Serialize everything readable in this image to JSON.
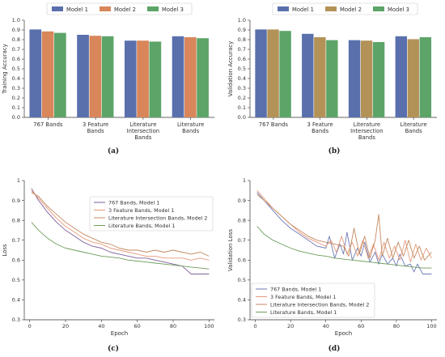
{
  "chart_data": [
    {
      "id": "a",
      "type": "bar",
      "panel_label": "(a)",
      "ylabel": "Training Accuracy",
      "ylim": [
        0,
        1.0
      ],
      "yticks": [
        "0.0",
        "0.1",
        "0.2",
        "0.3",
        "0.4",
        "0.5",
        "0.6",
        "0.7",
        "0.8",
        "0.9",
        "1.0"
      ],
      "categories": [
        [
          "767 Bands"
        ],
        [
          "3 Feature",
          "Bands"
        ],
        [
          "Literature",
          "Intersection",
          "Bands"
        ],
        [
          "Literature",
          "Bands"
        ]
      ],
      "series": [
        {
          "name": "Model 1",
          "color": "#5a70ad",
          "values": [
            0.905,
            0.85,
            0.79,
            0.835
          ]
        },
        {
          "name": "Model 2",
          "color": "#d8865a",
          "values": [
            0.885,
            0.84,
            0.79,
            0.825
          ]
        },
        {
          "name": "Model 3",
          "color": "#5ca468",
          "values": [
            0.87,
            0.835,
            0.78,
            0.815
          ]
        }
      ],
      "legend": "top"
    },
    {
      "id": "b",
      "type": "bar",
      "panel_label": "(b)",
      "ylabel": "Validation Accuracy",
      "ylim": [
        0,
        1.0
      ],
      "yticks": [
        "0.0",
        "0.1",
        "0.2",
        "0.3",
        "0.4",
        "0.5",
        "0.6",
        "0.7",
        "0.8",
        "0.9",
        "1.0"
      ],
      "categories": [
        [
          "767 Bands"
        ],
        [
          "3 Feature",
          "Bands"
        ],
        [
          "Literature",
          "Intersection",
          "Bands"
        ],
        [
          "Literature",
          "Bands"
        ]
      ],
      "series": [
        {
          "name": "Model 1",
          "color": "#5a70ad",
          "values": [
            0.905,
            0.86,
            0.795,
            0.835
          ]
        },
        {
          "name": "Model 2",
          "color": "#b39258",
          "values": [
            0.905,
            0.825,
            0.79,
            0.805
          ]
        },
        {
          "name": "Model 3",
          "color": "#5ca468",
          "values": [
            0.89,
            0.795,
            0.775,
            0.825
          ]
        }
      ],
      "legend": "top"
    },
    {
      "id": "c",
      "type": "line",
      "panel_label": "(c)",
      "xlabel": "Epoch",
      "ylabel": "Loss",
      "xlim": [
        -3,
        103
      ],
      "ylim": [
        0.3,
        1.0
      ],
      "xticks": [
        0,
        20,
        40,
        60,
        80,
        100
      ],
      "yticks": [
        0.3,
        0.4,
        0.5,
        0.6,
        0.7,
        0.8,
        0.9,
        1.0
      ],
      "legend": "top-right",
      "series": [
        {
          "name": "767 Bands, Model 1",
          "color": "#7f5f9a",
          "x": [
            1,
            5,
            10,
            15,
            20,
            25,
            30,
            35,
            40,
            45,
            50,
            55,
            60,
            65,
            70,
            75,
            80,
            85,
            90,
            95,
            100
          ],
          "y": [
            0.96,
            0.9,
            0.84,
            0.79,
            0.75,
            0.72,
            0.69,
            0.67,
            0.66,
            0.64,
            0.63,
            0.62,
            0.61,
            0.61,
            0.6,
            0.59,
            0.58,
            0.57,
            0.53,
            0.53,
            0.53
          ]
        },
        {
          "name": "3 Feature Bands, Model 1",
          "color": "#e89a7c",
          "x": [
            1,
            5,
            10,
            15,
            20,
            25,
            30,
            35,
            40,
            45,
            50,
            55,
            60,
            65,
            70,
            75,
            80,
            85,
            90,
            95,
            100
          ],
          "y": [
            0.95,
            0.91,
            0.86,
            0.81,
            0.77,
            0.74,
            0.71,
            0.69,
            0.68,
            0.66,
            0.65,
            0.64,
            0.63,
            0.62,
            0.62,
            0.61,
            0.61,
            0.61,
            0.6,
            0.61,
            0.6
          ]
        },
        {
          "name": "Literature Intersection Bands, Model 2",
          "color": "#c38a60",
          "x": [
            1,
            5,
            10,
            15,
            20,
            25,
            30,
            35,
            40,
            45,
            50,
            55,
            60,
            65,
            70,
            75,
            80,
            85,
            90,
            95,
            100
          ],
          "y": [
            0.94,
            0.92,
            0.87,
            0.83,
            0.79,
            0.76,
            0.73,
            0.71,
            0.69,
            0.68,
            0.66,
            0.65,
            0.65,
            0.64,
            0.65,
            0.64,
            0.65,
            0.64,
            0.63,
            0.64,
            0.62
          ]
        },
        {
          "name": "Literature Bands, Model 1",
          "color": "#6e9c5c",
          "x": [
            1,
            5,
            10,
            15,
            20,
            25,
            30,
            35,
            40,
            45,
            50,
            55,
            60,
            65,
            70,
            75,
            80,
            85,
            90,
            95,
            100
          ],
          "y": [
            0.79,
            0.75,
            0.71,
            0.68,
            0.66,
            0.65,
            0.64,
            0.63,
            0.62,
            0.615,
            0.61,
            0.6,
            0.595,
            0.59,
            0.585,
            0.58,
            0.575,
            0.57,
            0.565,
            0.56,
            0.555
          ]
        }
      ]
    },
    {
      "id": "d",
      "type": "line",
      "panel_label": "(d)",
      "xlabel": "Epoch",
      "ylabel": "Validation Loss",
      "xlim": [
        -3,
        103
      ],
      "ylim": [
        0.3,
        1.0
      ],
      "xticks": [
        0,
        20,
        40,
        60,
        80,
        100
      ],
      "yticks": [
        0.3,
        0.4,
        0.5,
        0.6,
        0.7,
        0.8,
        0.9,
        1.0
      ],
      "legend": "bottom-left",
      "series": [
        {
          "name": "767 Bands, Model 1",
          "color": "#6c7bb7",
          "x": [
            1,
            5,
            10,
            15,
            20,
            25,
            30,
            35,
            40,
            42,
            45,
            48,
            50,
            52,
            55,
            58,
            60,
            62,
            65,
            68,
            70,
            72,
            75,
            78,
            80,
            82,
            85,
            88,
            90,
            92,
            95,
            100
          ],
          "y": [
            0.94,
            0.9,
            0.85,
            0.8,
            0.76,
            0.73,
            0.7,
            0.67,
            0.66,
            0.72,
            0.61,
            0.68,
            0.63,
            0.74,
            0.6,
            0.66,
            0.62,
            0.69,
            0.59,
            0.64,
            0.58,
            0.63,
            0.58,
            0.61,
            0.57,
            0.63,
            0.57,
            0.58,
            0.54,
            0.58,
            0.53,
            0.53
          ]
        },
        {
          "name": "3 Feature Bands, Model 1",
          "color": "#e89a7c",
          "x": [
            1,
            5,
            10,
            15,
            20,
            25,
            30,
            35,
            40,
            43,
            46,
            49,
            52,
            55,
            58,
            61,
            64,
            67,
            70,
            73,
            76,
            79,
            82,
            85,
            88,
            91,
            94,
            97,
            100
          ],
          "y": [
            0.95,
            0.91,
            0.86,
            0.82,
            0.78,
            0.74,
            0.71,
            0.69,
            0.67,
            0.7,
            0.64,
            0.72,
            0.63,
            0.69,
            0.62,
            0.7,
            0.61,
            0.68,
            0.6,
            0.69,
            0.61,
            0.67,
            0.6,
            0.7,
            0.59,
            0.68,
            0.6,
            0.66,
            0.61
          ]
        },
        {
          "name": "Literature Intersection Bands, Model 2",
          "color": "#c38a60",
          "x": [
            1,
            5,
            10,
            15,
            20,
            25,
            30,
            35,
            40,
            45,
            50,
            53,
            56,
            59,
            62,
            65,
            68,
            70,
            72,
            75,
            78,
            81,
            84,
            87,
            90,
            93,
            96,
            100
          ],
          "y": [
            0.93,
            0.9,
            0.86,
            0.82,
            0.78,
            0.75,
            0.72,
            0.7,
            0.69,
            0.68,
            0.67,
            0.62,
            0.76,
            0.63,
            0.72,
            0.61,
            0.7,
            0.83,
            0.62,
            0.71,
            0.61,
            0.69,
            0.62,
            0.7,
            0.61,
            0.67,
            0.6,
            0.64
          ]
        },
        {
          "name": "Literature Bands, Model 1",
          "color": "#6e9c5c",
          "x": [
            1,
            5,
            10,
            15,
            20,
            25,
            30,
            35,
            40,
            45,
            50,
            55,
            60,
            65,
            70,
            75,
            80,
            85,
            90,
            95,
            100
          ],
          "y": [
            0.77,
            0.73,
            0.7,
            0.68,
            0.66,
            0.645,
            0.635,
            0.625,
            0.62,
            0.61,
            0.605,
            0.6,
            0.595,
            0.59,
            0.585,
            0.58,
            0.575,
            0.57,
            0.565,
            0.56,
            0.56
          ]
        }
      ]
    }
  ]
}
